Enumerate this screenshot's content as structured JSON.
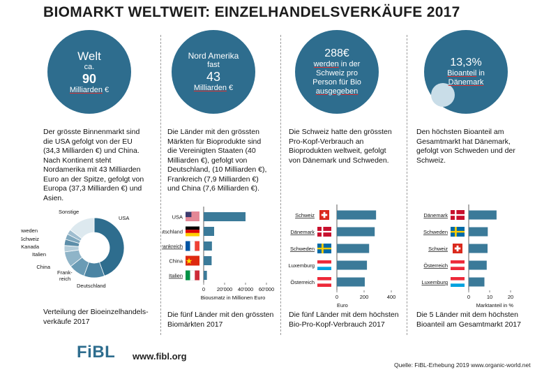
{
  "title": "BIOMARKT WELTWEIT: EINZELHANDELSVERKÄUFE 2017",
  "panels": [
    {
      "circle": {
        "l1": "Welt",
        "l2": "ca.",
        "l3": "90",
        "l4a": "Milliarden",
        "l4b": "€"
      },
      "desc": [
        "Der grösste Binnenmarkt sind",
        "die USA gefolgt von der EU",
        "(34,3 Milliarden €) und China.",
        "Nach Kontinent steht",
        "Nordamerika mit 43 Milliarden",
        "Euro an der Spitze, gefolgt von",
        "Europa (37,3 Milliarden €) und",
        "Asien."
      ],
      "caption": [
        "Verteilung der Bioeinzelhandels-",
        "verkäufe 2017"
      ]
    },
    {
      "circle": {
        "l1": "Nord Amerika",
        "l2": "fast",
        "l3": "43",
        "l4a": "Milliarden",
        "l4b": "€"
      },
      "desc": [
        "Die Länder mit den grössten",
        "Märkten für Bioprodukte sind",
        "die Vereinigten Staaten (40",
        "Milliarden €), gefolgt von",
        "Deutschland, (10 Milliarden €),",
        "Frankreich (7,9 Milliarden €)",
        "und China (7,6 Milliarden €)."
      ],
      "caption": [
        "Die fünf Länder mit den grössten",
        "Biomärkten 2017"
      ]
    },
    {
      "circle": {
        "l1": "288€",
        "l2a": "werden",
        "l2b": " in der",
        "l3": "Schweiz pro",
        "l4": "Person für Bio",
        "l5": "ausgegeben"
      },
      "desc": [
        "Die Schweiz hatte den grössten",
        "Pro-Kopf-Verbrauch an",
        "Bioprodukten weltweit, gefolgt",
        "von Dänemark und Schweden."
      ],
      "caption": [
        "Die fünf Länder mit dem höchsten",
        "Bio-Pro-Kopf-Verbrauch 2017"
      ]
    },
    {
      "circle": {
        "l1": "13,3%",
        "l2a": "Bioanteil",
        "l2b": " in",
        "l3": "Dänemark"
      },
      "desc": [
        "Den höchsten Bioanteil am",
        "Gesamtmarkt hat Dänemark,",
        "gefolgt von Schweden und der",
        "Schweiz."
      ],
      "caption": [
        "Die 5 Länder mit dem höchsten",
        "Bioanteil am Gesamtmarkt 2017"
      ]
    }
  ],
  "chart_data": [
    {
      "type": "pie",
      "categories": [
        "USA",
        "Deutschland",
        "Frank-reich",
        "China",
        "Italien",
        "Kanada",
        "Schweiz",
        "Schweden",
        "Sonstige"
      ],
      "values": [
        40,
        10,
        7.9,
        7.6,
        3.1,
        3.0,
        2.7,
        2.4,
        13.3
      ],
      "colors": [
        "#2e6d8e",
        "#4b84a3",
        "#6a9bb5",
        "#8fb4c8",
        "#b4cdda",
        "#5d8ea9",
        "#7fa8be",
        "#9fbdcf",
        "#dde9ef"
      ]
    },
    {
      "type": "bar",
      "categories": [
        "USA",
        "Deutschland",
        "Frankreich",
        "China",
        "Italien"
      ],
      "values": [
        40000,
        10000,
        7900,
        7600,
        3100
      ],
      "xticks": [
        "0",
        "20'000",
        "40'000",
        "60'000"
      ],
      "xlim": [
        0,
        60000
      ],
      "xlabel": "Biousmatz in Millionen Euro"
    },
    {
      "type": "bar",
      "categories": [
        "Schweiz",
        "Dänemark",
        "Schweden",
        "Luxemburg",
        "Österreich"
      ],
      "values": [
        288,
        278,
        237,
        221,
        205
      ],
      "xticks": [
        "0",
        "200",
        "400"
      ],
      "xlim": [
        0,
        400
      ],
      "xlabel": "Euro"
    },
    {
      "type": "bar",
      "categories": [
        "Dänemark",
        "Schweden",
        "Schweiz",
        "Österreich",
        "Luxemburg"
      ],
      "values": [
        13.3,
        9.1,
        9.0,
        8.6,
        7.5
      ],
      "xticks": [
        "0",
        "10",
        "20"
      ],
      "xlim": [
        0,
        20
      ],
      "xlabel": "Marktanteil in %"
    }
  ],
  "footer": {
    "logo": "FiBL",
    "url": "www.fibl.org",
    "source": "Quelle: FiBL-Erhebung 2019  www.organic-world.net"
  },
  "colors": {
    "circle": "#2e6d8e",
    "bar": "#3b7a99",
    "underline": "#d33"
  }
}
